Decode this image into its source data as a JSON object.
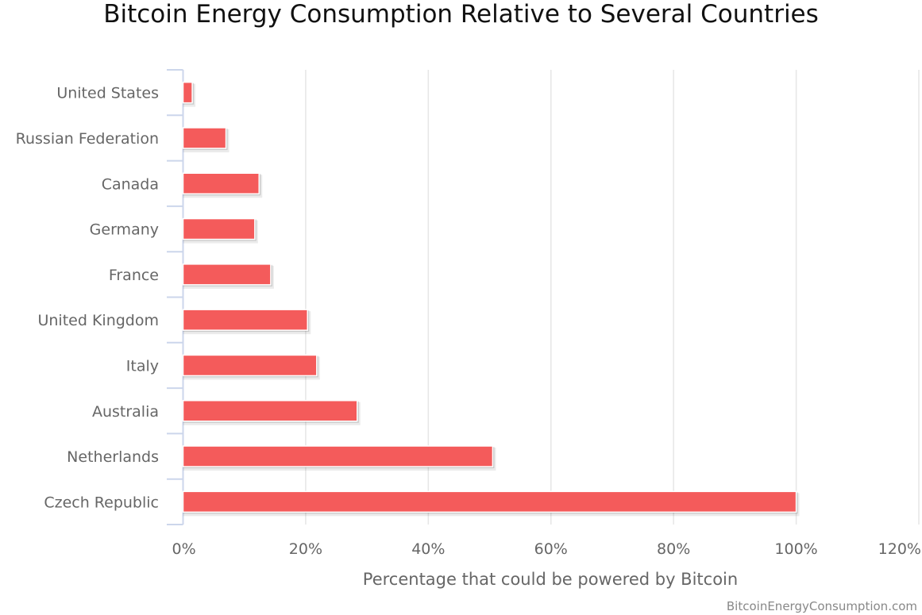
{
  "chart_data": {
    "type": "bar",
    "orientation": "horizontal",
    "title": "Bitcoin Energy Consumption Relative to Several Countries",
    "xlabel": "Percentage that could be powered by Bitcoin",
    "ylabel": "",
    "categories": [
      "United States",
      "Russian Federation",
      "Canada",
      "Germany",
      "France",
      "United Kingdom",
      "Italy",
      "Australia",
      "Netherlands",
      "Czech Republic"
    ],
    "values": [
      1.5,
      7.0,
      12.4,
      11.7,
      14.3,
      20.3,
      21.8,
      28.4,
      50.5,
      100.0
    ],
    "xlim": [
      0,
      120
    ],
    "xticks": [
      "0%",
      "20%",
      "40%",
      "60%",
      "80%",
      "100%",
      "120%"
    ],
    "grid": true,
    "bar_color": "#f45b5b",
    "credit": "BitcoinEnergyConsumption.com"
  }
}
